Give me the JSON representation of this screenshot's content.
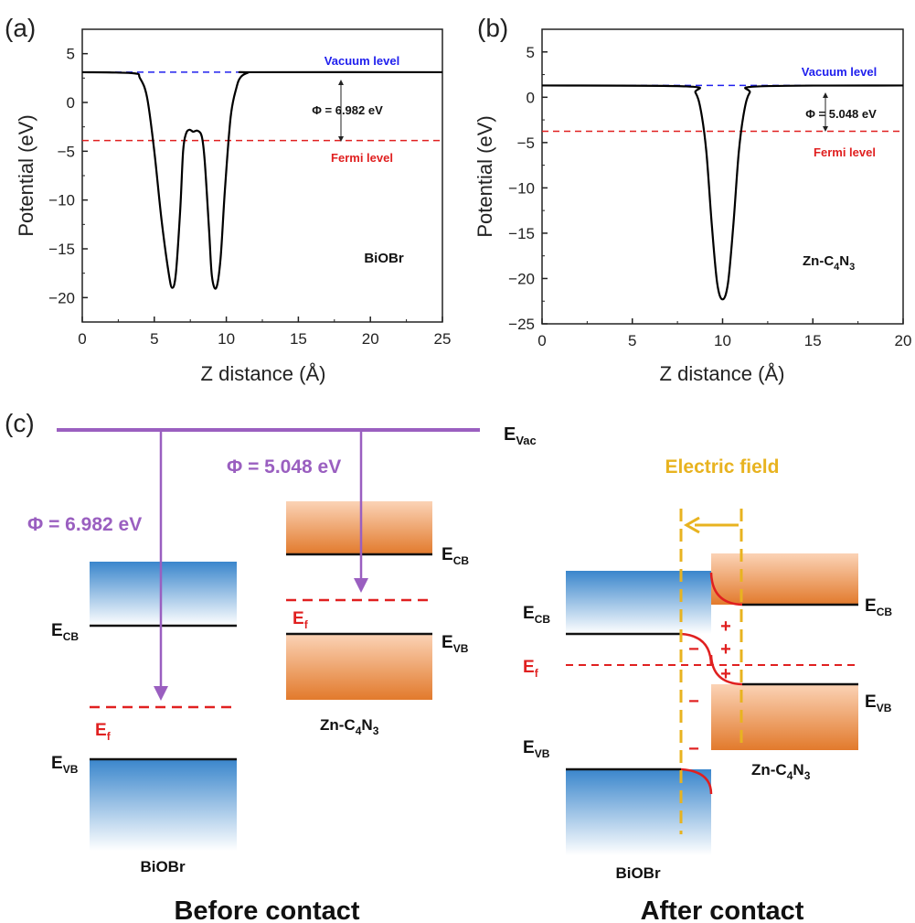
{
  "chart_data": [
    {
      "type": "line",
      "panel_label": "(a)",
      "xlabel": "Z distance (Å)",
      "ylabel": "Potential (eV)",
      "xlim": [
        0,
        25
      ],
      "ylim": [
        -22.5,
        7.5
      ],
      "xticks": [
        "0",
        "5",
        "10",
        "15",
        "20",
        "25"
      ],
      "yticks": [
        "5",
        "0",
        "−5",
        "−10",
        "−15",
        "−20"
      ],
      "material": "BiOBr",
      "vacuum_level": {
        "label": "Vacuum level",
        "value": 3.1,
        "color": "#2020ee"
      },
      "fermi_level": {
        "label": "Fermi level",
        "value": -3.9,
        "color": "#e02020"
      },
      "work_function": "Φ = 6.982 eV",
      "series": [
        {
          "x": [
            0,
            3.5,
            4.0,
            4.5,
            5.0,
            5.5,
            6.0,
            6.25,
            6.5,
            6.8,
            7.0,
            7.2,
            7.45,
            7.7,
            8.0,
            8.3,
            8.5,
            8.8,
            9.0,
            9.3,
            9.6,
            9.9,
            10.3,
            10.7,
            11.0,
            11.5,
            12.0,
            25
          ],
          "y": [
            3.1,
            3.0,
            2.5,
            0.5,
            -5,
            -12,
            -17.5,
            -19,
            -17.5,
            -11,
            -5,
            -3.2,
            -2.8,
            -3.0,
            -2.9,
            -3.5,
            -6,
            -13,
            -17.8,
            -19,
            -16,
            -9,
            -1.5,
            1.5,
            2.6,
            3.05,
            3.1,
            3.1
          ]
        }
      ]
    },
    {
      "type": "line",
      "panel_label": "(b)",
      "xlabel": "Z distance (Å)",
      "ylabel": "Potential (eV)",
      "xlim": [
        0,
        20
      ],
      "ylim": [
        -25,
        7.5
      ],
      "xticks": [
        "0",
        "5",
        "10",
        "15",
        "20"
      ],
      "yticks": [
        "5",
        "0",
        "−5",
        "−10",
        "−15",
        "−20",
        "−25"
      ],
      "material": "Zn-C4N3",
      "vacuum_level": {
        "label": "Vacuum level",
        "value": 1.3,
        "color": "#2020ee"
      },
      "fermi_level": {
        "label": "Fermi level",
        "value": -3.75,
        "color": "#e02020"
      },
      "work_function": "Φ = 5.048 eV",
      "series": [
        {
          "x": [
            0,
            8.0,
            8.5,
            8.8,
            9.1,
            9.4,
            9.7,
            10.0,
            10.3,
            10.6,
            10.9,
            11.2,
            11.5,
            12.0,
            20
          ],
          "y": [
            1.3,
            1.2,
            0.5,
            -1.5,
            -6,
            -14,
            -20.5,
            -22.3,
            -20.5,
            -14,
            -6,
            -1.5,
            0.5,
            1.2,
            1.3
          ]
        }
      ]
    }
  ],
  "panel_c": {
    "label": "(c)",
    "e_vac": "E",
    "e_vac_sub": "Vac",
    "phi_biobr": "Φ = 6.982 eV",
    "phi_zn": "Φ = 5.048 eV",
    "e": "E",
    "cb_sub": "CB",
    "vb_sub": "VB",
    "f_sub": "f",
    "biobr": "BiOBr",
    "zn_main": "Zn-C",
    "zn_sub4": "4",
    "zn_n": "N",
    "zn_sub3": "3",
    "before": "Before contact",
    "after": "After contact",
    "electric_field": "Electric field",
    "plus": "+",
    "minus": "−",
    "colors": {
      "purple": "#9a5fc0",
      "field": "#e8b320",
      "fermi": "#e02020",
      "blue": "#3a86cc",
      "orange": "#e27a2c"
    }
  }
}
